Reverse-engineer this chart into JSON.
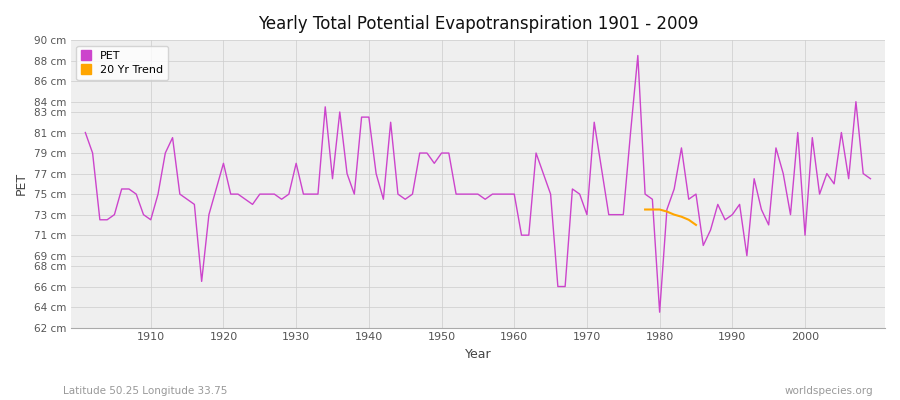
{
  "title": "Yearly Total Potential Evapotranspiration 1901 - 2009",
  "xlabel": "Year",
  "ylabel": "PET",
  "subtitle_left": "Latitude 50.25 Longitude 33.75",
  "subtitle_right": "worldspecies.org",
  "bg_color": "#ffffff",
  "plot_bg_color": "#efefef",
  "line_color": "#cc44cc",
  "trend_color": "#ffa500",
  "legend_labels": [
    "PET",
    "20 Yr Trend"
  ],
  "years": [
    1901,
    1902,
    1903,
    1904,
    1905,
    1906,
    1907,
    1908,
    1909,
    1910,
    1911,
    1912,
    1913,
    1914,
    1915,
    1916,
    1917,
    1918,
    1919,
    1920,
    1921,
    1922,
    1923,
    1924,
    1925,
    1926,
    1927,
    1928,
    1929,
    1930,
    1931,
    1932,
    1933,
    1934,
    1935,
    1936,
    1937,
    1938,
    1939,
    1940,
    1941,
    1942,
    1943,
    1944,
    1945,
    1946,
    1947,
    1948,
    1949,
    1950,
    1951,
    1952,
    1953,
    1954,
    1955,
    1956,
    1957,
    1958,
    1959,
    1960,
    1961,
    1962,
    1963,
    1964,
    1965,
    1966,
    1967,
    1968,
    1969,
    1970,
    1971,
    1972,
    1973,
    1974,
    1975,
    1976,
    1977,
    1978,
    1979,
    1980,
    1981,
    1982,
    1983,
    1984,
    1985,
    1986,
    1987,
    1988,
    1989,
    1990,
    1991,
    1992,
    1993,
    1994,
    1995,
    1996,
    1997,
    1998,
    1999,
    2000,
    2001,
    2002,
    2003,
    2004,
    2005,
    2006,
    2007,
    2008,
    2009
  ],
  "pet": [
    81.0,
    79.0,
    72.5,
    72.5,
    73.0,
    75.5,
    75.5,
    75.0,
    73.0,
    72.5,
    75.0,
    79.0,
    80.5,
    75.0,
    74.5,
    74.0,
    66.5,
    73.0,
    75.5,
    78.0,
    75.0,
    75.0,
    74.5,
    74.0,
    75.0,
    75.0,
    75.0,
    74.5,
    75.0,
    78.0,
    75.0,
    75.0,
    75.0,
    83.5,
    76.5,
    83.0,
    77.0,
    75.0,
    82.5,
    82.5,
    77.0,
    74.5,
    82.0,
    75.0,
    74.5,
    75.0,
    79.0,
    79.0,
    78.0,
    79.0,
    79.0,
    75.0,
    75.0,
    75.0,
    75.0,
    74.5,
    75.0,
    75.0,
    75.0,
    75.0,
    71.0,
    71.0,
    79.0,
    77.0,
    75.0,
    66.0,
    66.0,
    75.5,
    75.0,
    73.0,
    82.0,
    77.5,
    73.0,
    73.0,
    73.0,
    81.0,
    88.5,
    75.0,
    74.5,
    63.5,
    73.5,
    75.5,
    79.5,
    74.5,
    75.0,
    70.0,
    71.5,
    74.0,
    72.5,
    73.0,
    74.0,
    69.0,
    76.5,
    73.5,
    72.0,
    79.5,
    77.0,
    73.0,
    81.0,
    71.0,
    80.5,
    75.0,
    77.0,
    76.0,
    81.0,
    76.5,
    84.0,
    77.0,
    76.5
  ],
  "trend_years": [
    1978,
    1979,
    1980,
    1981,
    1982,
    1983,
    1984,
    1985
  ],
  "trend_values": [
    73.5,
    73.5,
    73.5,
    73.3,
    73.0,
    72.8,
    72.5,
    72.0
  ],
  "ylim": [
    62,
    90
  ],
  "ytick_vals": [
    62,
    64,
    66,
    68,
    69,
    71,
    73,
    75,
    77,
    79,
    81,
    83,
    84,
    86,
    88,
    90
  ],
  "xtick_vals": [
    1910,
    1920,
    1930,
    1940,
    1950,
    1960,
    1970,
    1980,
    1990,
    2000
  ],
  "xlim": [
    1899,
    2011
  ]
}
